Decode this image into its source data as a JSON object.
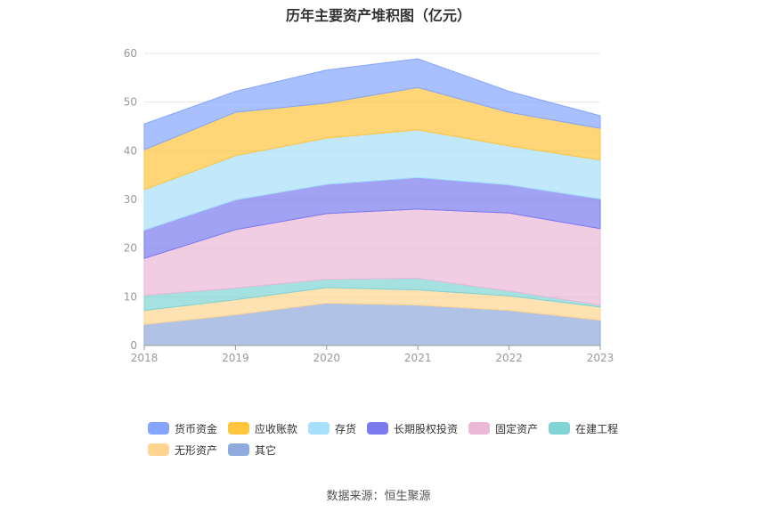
{
  "title": "历年主要资产堆积图（亿元）",
  "source": "数据来源：恒生聚源",
  "chart_data": {
    "type": "area",
    "stacked": true,
    "categories": [
      "2018",
      "2019",
      "2020",
      "2021",
      "2022",
      "2023"
    ],
    "ylim": [
      0,
      60
    ],
    "yticks": [
      0,
      10,
      20,
      30,
      40,
      50,
      60
    ],
    "grid": true,
    "legend_position": "bottom",
    "series": [
      {
        "name": "其它",
        "color": "#8faadc",
        "values": [
          4.3,
          6.3,
          8.7,
          8.3,
          7.2,
          5.2
        ]
      },
      {
        "name": "无形资产",
        "color": "#ffd591",
        "values": [
          2.9,
          3.1,
          3.2,
          3.1,
          3.0,
          2.7
        ]
      },
      {
        "name": "在建工程",
        "color": "#80d4d4",
        "values": [
          3.1,
          2.4,
          1.7,
          2.4,
          1.0,
          0.4
        ]
      },
      {
        "name": "固定资产",
        "color": "#ebb8d8",
        "values": [
          7.6,
          12.0,
          13.5,
          14.2,
          16.0,
          15.7
        ]
      },
      {
        "name": "长期股权投资",
        "color": "#7b7bef",
        "values": [
          5.8,
          6.1,
          6.0,
          6.5,
          5.8,
          6.1
        ]
      },
      {
        "name": "存货",
        "color": "#a6e0fa",
        "values": [
          8.3,
          9.1,
          9.5,
          9.8,
          8.0,
          8.0
        ]
      },
      {
        "name": "应收账款",
        "color": "#ffc53d",
        "values": [
          8.2,
          8.9,
          7.2,
          8.7,
          6.9,
          6.5
        ]
      },
      {
        "name": "货币资金",
        "color": "#85a5ff",
        "values": [
          5.3,
          4.3,
          6.8,
          5.9,
          4.3,
          2.6
        ]
      }
    ],
    "legend_order": [
      "货币资金",
      "应收账款",
      "存货",
      "长期股权投资",
      "固定资产",
      "在建工程",
      "无形资产",
      "其它"
    ]
  }
}
